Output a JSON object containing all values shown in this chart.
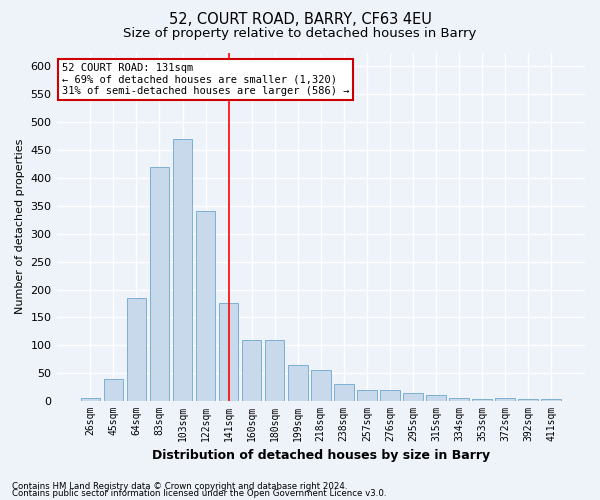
{
  "title_line1": "52, COURT ROAD, BARRY, CF63 4EU",
  "title_line2": "Size of property relative to detached houses in Barry",
  "xlabel": "Distribution of detached houses by size in Barry",
  "ylabel": "Number of detached properties",
  "categories": [
    "26sqm",
    "45sqm",
    "64sqm",
    "83sqm",
    "103sqm",
    "122sqm",
    "141sqm",
    "160sqm",
    "180sqm",
    "199sqm",
    "218sqm",
    "238sqm",
    "257sqm",
    "276sqm",
    "295sqm",
    "315sqm",
    "334sqm",
    "353sqm",
    "372sqm",
    "392sqm",
    "411sqm"
  ],
  "values": [
    5,
    40,
    185,
    420,
    470,
    340,
    175,
    110,
    110,
    65,
    55,
    30,
    20,
    20,
    15,
    10,
    5,
    3,
    5,
    3,
    3
  ],
  "bar_color": "#c9d9ec",
  "bar_edge_color": "#7bafd4",
  "red_line_x": 6.0,
  "annotation_line1": "52 COURT ROAD: 131sqm",
  "annotation_line2": "← 69% of detached houses are smaller (1,320)",
  "annotation_line3": "31% of semi-detached houses are larger (586) →",
  "annotation_box_color": "#ffffff",
  "annotation_box_edge": "#cc0000",
  "ylim": [
    0,
    625
  ],
  "yticks": [
    0,
    50,
    100,
    150,
    200,
    250,
    300,
    350,
    400,
    450,
    500,
    550,
    600
  ],
  "footnote1": "Contains HM Land Registry data © Crown copyright and database right 2024.",
  "footnote2": "Contains public sector information licensed under the Open Government Licence v3.0.",
  "background_color": "#eef2f9",
  "plot_bg_color": "#eef2f9",
  "grid_color": "#ffffff",
  "title_fontsize": 10.5,
  "subtitle_fontsize": 9.5
}
